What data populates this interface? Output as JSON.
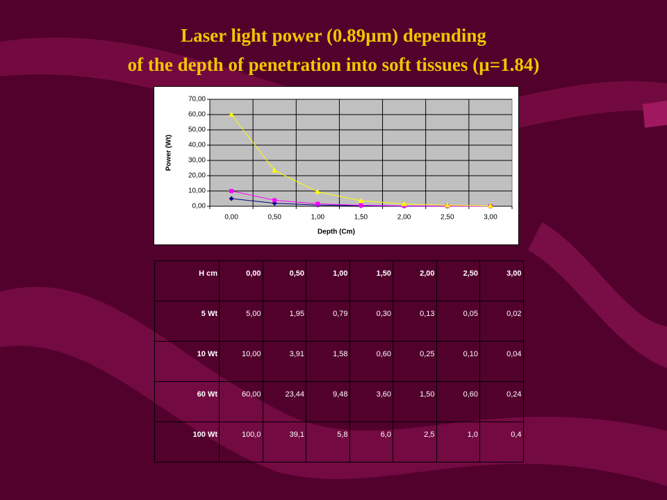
{
  "title": [
    "Laser light power (0.89µm) depending",
    "of the depth of penetration into soft tissues (µ=1.84)"
  ],
  "chart_data": {
    "type": "line",
    "x_label": "Depth (Cm)",
    "y_label": "Power (Wt)",
    "categories": [
      "0,00",
      "0,50",
      "1,00",
      "1,50",
      "2,00",
      "2,50",
      "3,00"
    ],
    "series": [
      {
        "color": "#000080",
        "marker": "diamond",
        "values": [
          5.0,
          1.95,
          0.79,
          0.3,
          0.13,
          0.05,
          0.02
        ]
      },
      {
        "color": "#ff00ff",
        "marker": "square",
        "values": [
          10.0,
          3.91,
          1.58,
          0.6,
          0.25,
          0.1,
          0.04
        ]
      },
      {
        "color": "#ffff00",
        "marker": "triangle",
        "values": [
          60.0,
          23.44,
          9.48,
          3.6,
          1.5,
          0.6,
          0.24
        ]
      }
    ],
    "ylim": [
      0,
      70
    ],
    "yticks": [
      {
        "value": 0,
        "label": "0,00"
      },
      {
        "value": 10,
        "label": "10,00"
      },
      {
        "value": 20,
        "label": "20,00"
      },
      {
        "value": 30,
        "label": "30,00"
      },
      {
        "value": 40,
        "label": "40,00"
      },
      {
        "value": 50,
        "label": "50,00"
      },
      {
        "value": 60,
        "label": "60,00"
      },
      {
        "value": 70,
        "label": "70,00"
      }
    ],
    "grid": true,
    "plot_background": "#c0c0c0"
  },
  "table": {
    "rows": [
      [
        "H cm",
        "0,00",
        "0,50",
        "1,00",
        "1,50",
        "2,00",
        "2,50",
        "3,00"
      ],
      [
        "5 Wt",
        "5,00",
        "1,95",
        "0,79",
        "0,30",
        "0,13",
        "0,05",
        "0,02"
      ],
      [
        "10 Wt",
        "10,00",
        "3,91",
        "1,58",
        "0,60",
        "0,25",
        "0,10",
        "0,04"
      ],
      [
        "60 Wt",
        "60,00",
        "23,44",
        "9,48",
        "3,60",
        "1,50",
        "0,60",
        "0,24"
      ],
      [
        "100 Wt",
        "100,0",
        "39,1",
        "5,8",
        "6,0",
        "2,5",
        "1,0",
        "0,4"
      ]
    ]
  }
}
